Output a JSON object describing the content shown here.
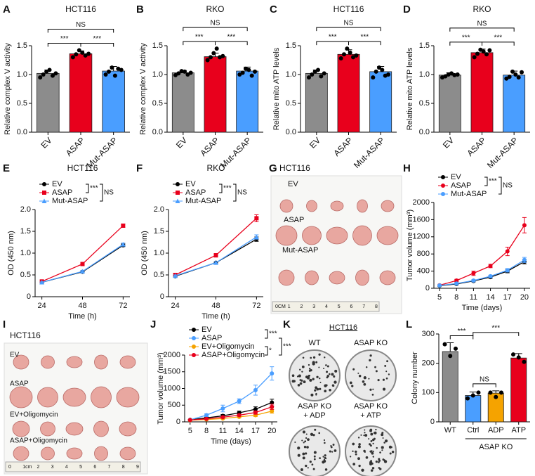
{
  "chart_data": [
    {
      "type": "bar",
      "letter": "A",
      "title": "HCT116",
      "ylabel": "Relative complex V activity",
      "categories": [
        "EV",
        "ASAP",
        "Mut-ASAP"
      ],
      "values": [
        1.02,
        1.36,
        1.06
      ],
      "errors": [
        0.06,
        0.05,
        0.08
      ],
      "colors": [
        "#8c8c8c",
        "#e8001c",
        "#4a9eff"
      ],
      "points": [
        [
          0.95,
          1.0,
          1.05,
          1.08,
          0.98,
          1.02
        ],
        [
          1.3,
          1.35,
          1.42,
          1.38,
          1.33,
          1.36
        ],
        [
          1.0,
          1.05,
          1.12,
          0.98,
          1.1,
          1.08
        ]
      ],
      "ylim": [
        0,
        1.5
      ],
      "yticks": [
        {
          "value": 0,
          "label": "0.0"
        },
        0.5,
        {
          "value": 1,
          "label": "1.0"
        },
        1.5
      ],
      "rotate_labels": true,
      "brackets": [
        {
          "label": "***",
          "between": [
            "EV",
            "ASAP"
          ]
        },
        {
          "label": "***",
          "between": [
            "ASAP",
            "Mut-ASAP"
          ]
        },
        {
          "label": "NS",
          "between": [
            "EV",
            "Mut-ASAP"
          ]
        }
      ]
    },
    {
      "type": "bar",
      "letter": "B",
      "title": "RKO",
      "ylabel": "Relative complex V activity",
      "categories": [
        "EV",
        "ASAP",
        "Mut-ASAP"
      ],
      "values": [
        1.03,
        1.31,
        1.06
      ],
      "errors": [
        0.04,
        0.06,
        0.07
      ],
      "colors": [
        "#8c8c8c",
        "#e8001c",
        "#4a9eff"
      ],
      "points": [
        [
          0.99,
          1.02,
          1.06,
          1.05,
          1.0,
          1.03
        ],
        [
          1.25,
          1.3,
          1.37,
          1.45,
          1.3,
          1.32
        ],
        [
          1.0,
          1.03,
          1.1,
          1.08,
          0.98,
          1.05
        ]
      ],
      "ylim": [
        0,
        1.5
      ],
      "yticks": [
        {
          "value": 0,
          "label": "0.0"
        },
        0.5,
        {
          "value": 1,
          "label": "1.0"
        },
        1.5
      ],
      "rotate_labels": true,
      "brackets": [
        {
          "label": "***",
          "between": [
            "EV",
            "ASAP"
          ]
        },
        {
          "label": "***",
          "between": [
            "ASAP",
            "Mut-ASAP"
          ]
        },
        {
          "label": "NS",
          "between": [
            "EV",
            "Mut-ASAP"
          ]
        }
      ]
    },
    {
      "type": "bar",
      "letter": "C",
      "title": "HCT116",
      "ylabel": "Relative mito ATP levels",
      "categories": [
        "EV",
        "ASAP",
        "Mut-ASAP"
      ],
      "values": [
        1.02,
        1.35,
        1.05
      ],
      "errors": [
        0.06,
        0.08,
        0.09
      ],
      "colors": [
        "#8c8c8c",
        "#e8001c",
        "#4a9eff"
      ],
      "points": [
        [
          0.95,
          1.0,
          1.05,
          1.08,
          0.97,
          1.02
        ],
        [
          1.28,
          1.35,
          1.45,
          1.38,
          1.3,
          1.33
        ],
        [
          0.95,
          1.05,
          1.12,
          1.08,
          0.98,
          1.0
        ]
      ],
      "ylim": [
        0,
        1.5
      ],
      "yticks": [
        {
          "value": 0,
          "label": "0.0"
        },
        0.5,
        {
          "value": 1,
          "label": "1.0"
        },
        1.5
      ],
      "rotate_labels": true,
      "brackets": [
        {
          "label": "***",
          "between": [
            "EV",
            "ASAP"
          ]
        },
        {
          "label": "***",
          "between": [
            "ASAP",
            "Mut-ASAP"
          ]
        },
        {
          "label": "NS",
          "between": [
            "EV",
            "Mut-ASAP"
          ]
        }
      ]
    },
    {
      "type": "bar",
      "letter": "D",
      "title": "RKO",
      "ylabel": "Relative mito ATP levels",
      "categories": [
        "EV",
        "ASAP",
        "Mut-ASAP"
      ],
      "values": [
        0.99,
        1.38,
        0.99
      ],
      "errors": [
        0.04,
        0.06,
        0.07
      ],
      "colors": [
        "#8c8c8c",
        "#e8001c",
        "#4a9eff"
      ],
      "points": [
        [
          0.95,
          0.97,
          1.0,
          1.02,
          0.99,
          1.0
        ],
        [
          1.3,
          1.36,
          1.43,
          1.4,
          1.35,
          1.42
        ],
        [
          0.93,
          0.96,
          1.05,
          1.0,
          0.95,
          1.04
        ]
      ],
      "ylim": [
        0,
        1.5
      ],
      "yticks": [
        {
          "value": 0,
          "label": "0.0"
        },
        0.5,
        {
          "value": 1,
          "label": "1.0"
        },
        1.5
      ],
      "rotate_labels": true,
      "brackets": [
        {
          "label": "***",
          "between": [
            "EV",
            "ASAP"
          ]
        },
        {
          "label": "***",
          "between": [
            "ASAP",
            "Mut-ASAP"
          ]
        },
        {
          "label": "NS",
          "between": [
            "EV",
            "Mut-ASAP"
          ]
        }
      ]
    },
    {
      "type": "line",
      "letter": "E",
      "title": "HCT116",
      "ylabel": "OD (450 nm)",
      "xlabel": "Time (h)",
      "x": [
        24,
        48,
        72
      ],
      "xlim": [
        20,
        76
      ],
      "xticks": [
        24,
        48,
        72
      ],
      "ylim": [
        0,
        2
      ],
      "yticks": [
        0,
        0.5,
        {
          "value": 1,
          "label": "1.0"
        },
        1.5,
        {
          "value": 2,
          "label": "2.0"
        }
      ],
      "series": [
        {
          "name": "EV",
          "color": "#000000",
          "marker": "circle",
          "values": [
            0.33,
            0.57,
            1.18
          ],
          "errors": [
            0.01,
            0.02,
            0.03
          ]
        },
        {
          "name": "ASAP",
          "color": "#e8001c",
          "marker": "square",
          "values": [
            0.35,
            0.75,
            1.63
          ],
          "errors": [
            0.01,
            0.02,
            0.04
          ]
        },
        {
          "name": "Mut-ASAP",
          "color": "#4a9eff",
          "marker": "triangle",
          "values": [
            0.33,
            0.58,
            1.2
          ],
          "errors": [
            0.01,
            0.02,
            0.03
          ]
        }
      ],
      "legend_brackets": [
        {
          "label": "***",
          "between": [
            "EV",
            "ASAP"
          ]
        },
        {
          "label": "NS",
          "between": [
            "EV",
            "Mut-ASAP"
          ]
        }
      ]
    },
    {
      "type": "line",
      "letter": "F",
      "title": "RKO",
      "ylabel": "OD (450 nm)",
      "xlabel": "Time (h)",
      "x": [
        24,
        48,
        72
      ],
      "xlim": [
        20,
        76
      ],
      "xticks": [
        24,
        48,
        72
      ],
      "ylim": [
        0,
        2
      ],
      "yticks": [
        0,
        0.5,
        {
          "value": 1,
          "label": "1.0"
        },
        1.5,
        {
          "value": 2,
          "label": "2.0"
        }
      ],
      "series": [
        {
          "name": "EV",
          "color": "#000000",
          "marker": "circle",
          "values": [
            0.47,
            0.78,
            1.32
          ],
          "errors": [
            0.02,
            0.02,
            0.05
          ]
        },
        {
          "name": "ASAP",
          "color": "#e8001c",
          "marker": "square",
          "values": [
            0.5,
            0.95,
            1.8
          ],
          "errors": [
            0.02,
            0.04,
            0.08
          ]
        },
        {
          "name": "Mut-ASAP",
          "color": "#4a9eff",
          "marker": "triangle",
          "values": [
            0.48,
            0.78,
            1.37
          ],
          "errors": [
            0.02,
            0.02,
            0.05
          ]
        }
      ],
      "legend_brackets": [
        {
          "label": "***",
          "between": [
            "EV",
            "ASAP"
          ]
        },
        {
          "label": "NS",
          "between": [
            "EV",
            "Mut-ASAP"
          ]
        }
      ]
    },
    {
      "type": "line",
      "letter": "H",
      "ylabel": "Tumor volume (mm³)",
      "xlabel": "Time (days)",
      "x": [
        5,
        8,
        11,
        14,
        17,
        20
      ],
      "xlim": [
        4,
        21
      ],
      "xticks": [
        5,
        8,
        11,
        14,
        17,
        20
      ],
      "ylim": [
        0,
        2000
      ],
      "yticks": [
        0,
        400,
        800,
        1200,
        1600,
        2000
      ],
      "series": [
        {
          "name": "EV",
          "color": "#000000",
          "marker": "circle",
          "values": [
            60,
            100,
            170,
            260,
            400,
            620
          ],
          "errors": [
            10,
            15,
            20,
            25,
            40,
            50
          ]
        },
        {
          "name": "ASAP",
          "color": "#e8001c",
          "marker": "circle",
          "values": [
            70,
            180,
            350,
            520,
            860,
            1470
          ],
          "errors": [
            10,
            30,
            50,
            40,
            100,
            180
          ]
        },
        {
          "name": "Mut-ASAP",
          "color": "#4a9eff",
          "marker": "circle",
          "values": [
            65,
            110,
            180,
            280,
            420,
            660
          ],
          "errors": [
            10,
            15,
            20,
            25,
            40,
            60
          ]
        }
      ],
      "legend_brackets": [
        {
          "label": "***",
          "between": [
            "EV",
            "ASAP"
          ]
        },
        {
          "label": "NS",
          "between": [
            "EV",
            "Mut-ASAP"
          ]
        }
      ]
    },
    {
      "type": "line",
      "letter": "J",
      "ylabel": "Tumor volume (mm³)",
      "xlabel": "Time (days)",
      "x": [
        5,
        8,
        11,
        14,
        17,
        20
      ],
      "xlim": [
        4,
        21
      ],
      "xticks": [
        5,
        8,
        11,
        14,
        17,
        20
      ],
      "ylim": [
        0,
        2000
      ],
      "yticks": [
        0,
        500,
        1000,
        1500,
        2000
      ],
      "series": [
        {
          "name": "EV",
          "color": "#000000",
          "marker": "circle",
          "values": [
            60,
            120,
            180,
            270,
            380,
            580
          ],
          "errors": [
            10,
            20,
            40,
            50,
            70,
            100
          ]
        },
        {
          "name": "ASAP",
          "color": "#4a9eff",
          "marker": "circle",
          "values": [
            60,
            200,
            400,
            620,
            950,
            1450
          ],
          "errors": [
            10,
            40,
            100,
            70,
            150,
            200
          ]
        },
        {
          "name": "EV+Oligomycin",
          "color": "#f5a300",
          "marker": "circle",
          "values": [
            50,
            70,
            100,
            150,
            200,
            320
          ],
          "errors": [
            10,
            15,
            20,
            25,
            40,
            60
          ]
        },
        {
          "name": "ASAP+Oligomycin",
          "color": "#e8001c",
          "marker": "circle",
          "values": [
            55,
            90,
            140,
            200,
            280,
            450
          ],
          "errors": [
            10,
            20,
            30,
            30,
            50,
            80
          ]
        }
      ],
      "legend_brackets": [
        {
          "label": "***",
          "between": [
            "EV",
            "ASAP"
          ]
        },
        {
          "label": "*",
          "between": [
            "EV+Oligomycin",
            "ASAP+Oligomycin"
          ]
        },
        {
          "label": "***",
          "between": [
            "ASAP",
            "ASAP+Oligomycin"
          ]
        }
      ]
    },
    {
      "type": "bar",
      "letter": "L",
      "ylabel": "Colony number",
      "categories": [
        "WT",
        "Ctrl",
        "ADP",
        "ATP"
      ],
      "values": [
        240,
        90,
        98,
        218
      ],
      "errors": [
        30,
        12,
        8,
        15
      ],
      "colors": [
        "#8c8c8c",
        "#4a9eff",
        "#f5a300",
        "#e8001c"
      ],
      "points": [
        [
          265,
          225,
          250
        ],
        [
          80,
          90,
          100
        ],
        [
          100,
          85,
          100
        ],
        [
          230,
          220,
          205
        ]
      ],
      "ylim": [
        0,
        300
      ],
      "yticks": [
        0,
        100,
        200,
        300
      ],
      "rotate_labels": false,
      "group_labels": [
        {
          "label": "ASAP KO",
          "categories": [
            "Ctrl",
            "ADP",
            "ATP"
          ]
        }
      ],
      "brackets": [
        {
          "label": "***",
          "between": [
            "WT",
            "Ctrl"
          ]
        },
        {
          "label": "NS",
          "between": [
            "Ctrl",
            "ADP"
          ]
        },
        {
          "label": "***",
          "between": [
            "Ctrl",
            "ATP"
          ]
        }
      ]
    }
  ],
  "photos": [
    {
      "letter": "G",
      "title": "HCT116",
      "labels": [
        "EV",
        "ASAP",
        "Mut-ASAP"
      ],
      "ruler": [
        "0CM",
        "1",
        "2",
        "3",
        "4",
        "5",
        "6",
        "7",
        "8"
      ]
    },
    {
      "letter": "I",
      "title": "HCT116",
      "labels": [
        "EV",
        "ASAP",
        "EV+Oligomycin",
        "ASAP+Oligomycin"
      ],
      "ruler": [
        "0",
        "1cm",
        "2",
        "3",
        "4",
        "5",
        "6",
        "7",
        "8",
        "9"
      ]
    },
    {
      "letter": "K",
      "title": "HCT116",
      "plates": [
        [
          "WT"
        ],
        [
          "ASAP KO"
        ],
        [
          "ASAP KO",
          "+ ADP"
        ],
        [
          "ASAP KO",
          "+ ATP"
        ]
      ]
    }
  ]
}
